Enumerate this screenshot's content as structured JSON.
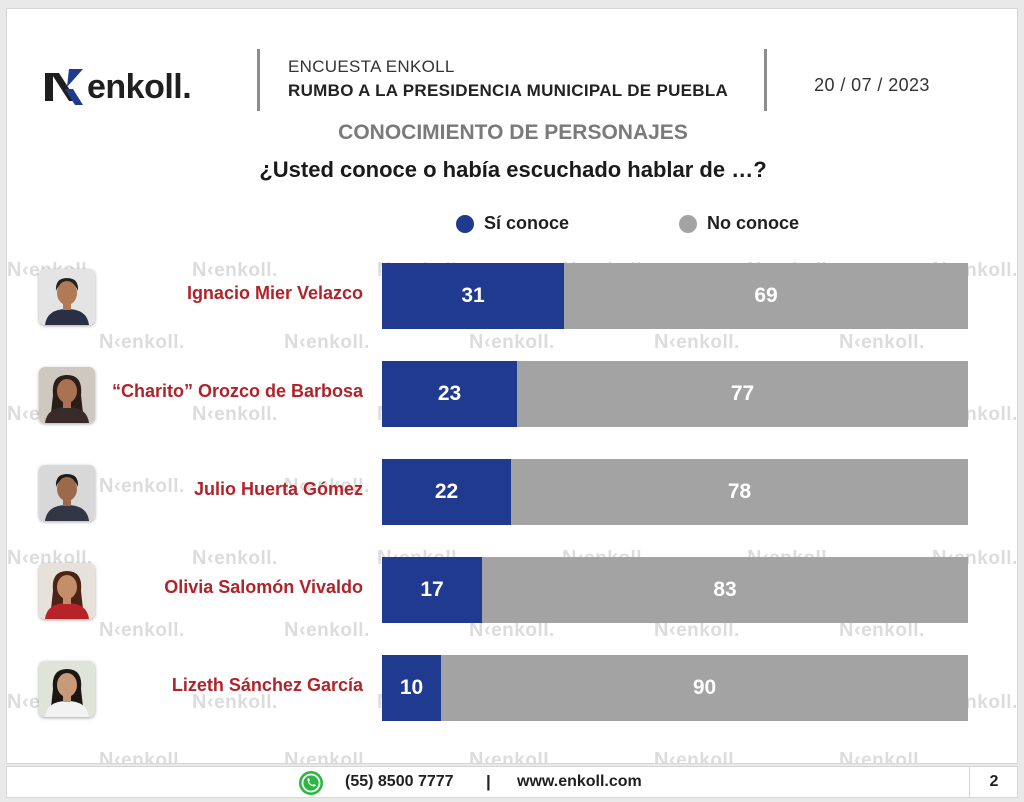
{
  "header": {
    "brand": "enkoll.",
    "survey_label": "ENCUESTA ENKOLL",
    "survey_title": "RUMBO A LA PRESIDENCIA MUNICIPAL DE PUEBLA",
    "date": "20 / 07 / 2023"
  },
  "watermark_text": "enkoll.",
  "colors": {
    "si": "#1f3a8f",
    "no": "#a3a3a3",
    "name": "#b0232a"
  },
  "chart_data": {
    "type": "bar",
    "orientation": "horizontal",
    "stacked": true,
    "title": "CONOCIMIENTO DE PERSONAJES",
    "subtitle": "¿Usted conoce o había escuchado hablar de …?",
    "legend_position": "top",
    "categories": [
      "Ignacio Mier Velazco",
      "“Charito” Orozco de Barbosa",
      "Julio Huerta Gómez",
      "Olivia Salomón Vivaldo",
      "Lizeth Sánchez García"
    ],
    "series": [
      {
        "name": "Sí conoce",
        "values": [
          31,
          23,
          22,
          17,
          10
        ]
      },
      {
        "name": "No conoce",
        "values": [
          69,
          77,
          78,
          83,
          90
        ]
      }
    ],
    "xlim": [
      0,
      100
    ]
  },
  "footer": {
    "phone": "(55) 8500 7777",
    "separator": "|",
    "website": "www.enkoll.com",
    "page": "2"
  },
  "icons": {
    "footer": "whatsapp-icon"
  }
}
